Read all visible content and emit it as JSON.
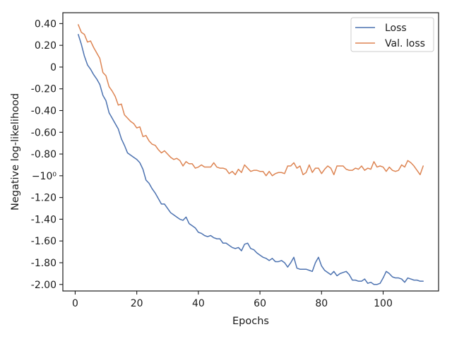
{
  "chart_data": {
    "type": "line",
    "xlabel": "Epochs",
    "ylabel": "Negative log-likelihood",
    "xlim": [
      -4,
      118
    ],
    "ylim": [
      -2.06,
      0.5
    ],
    "x_ticks": [
      0,
      20,
      40,
      60,
      80,
      100
    ],
    "y_ticks": [
      {
        "value": 0.4,
        "label": "0.40"
      },
      {
        "value": 0.2,
        "label": "0.20"
      },
      {
        "value": 0.0,
        "label": "0"
      },
      {
        "value": -0.2,
        "label": "-0.20"
      },
      {
        "value": -0.4,
        "label": "-0.40"
      },
      {
        "value": -0.6,
        "label": "-0.60"
      },
      {
        "value": -0.8,
        "label": "-0.80"
      },
      {
        "value": -1.0,
        "label": "−10⁰"
      },
      {
        "value": -1.2,
        "label": "-1.20"
      },
      {
        "value": -1.4,
        "label": "-1.40"
      },
      {
        "value": -1.6,
        "label": "-1.60"
      },
      {
        "value": -1.8,
        "label": "-1.80"
      },
      {
        "value": -2.0,
        "label": "-2.00"
      }
    ],
    "grid": false,
    "legend_position": "top-right",
    "series": [
      {
        "name": "Loss",
        "color": "#4c72b0",
        "x": [
          1,
          2,
          3,
          4,
          5,
          6,
          7,
          8,
          9,
          10,
          11,
          12,
          13,
          14,
          15,
          16,
          17,
          18,
          19,
          20,
          21,
          22,
          23,
          24,
          25,
          26,
          27,
          28,
          29,
          30,
          31,
          32,
          33,
          34,
          35,
          36,
          37,
          38,
          39,
          40,
          41,
          42,
          43,
          44,
          45,
          46,
          47,
          48,
          49,
          50,
          51,
          52,
          53,
          54,
          55,
          56,
          57,
          58,
          59,
          60,
          61,
          62,
          63,
          64,
          65,
          66,
          67,
          68,
          69,
          70,
          71,
          72,
          73,
          74,
          75,
          76,
          77,
          78,
          79,
          80,
          81,
          82,
          83,
          84,
          85,
          86,
          87,
          88,
          89,
          90,
          91,
          92,
          93,
          94,
          95,
          96,
          97,
          98,
          99,
          100,
          101,
          102,
          103,
          104,
          105,
          106,
          107,
          108,
          109,
          110,
          111,
          112,
          113
        ],
        "values": [
          0.3,
          0.21,
          0.1,
          0.02,
          -0.02,
          -0.07,
          -0.11,
          -0.16,
          -0.26,
          -0.31,
          -0.42,
          -0.47,
          -0.52,
          -0.57,
          -0.66,
          -0.72,
          -0.79,
          -0.81,
          -0.83,
          -0.85,
          -0.88,
          -0.94,
          -1.04,
          -1.07,
          -1.12,
          -1.16,
          -1.21,
          -1.26,
          -1.26,
          -1.3,
          -1.34,
          -1.36,
          -1.38,
          -1.4,
          -1.41,
          -1.38,
          -1.44,
          -1.46,
          -1.48,
          -1.52,
          -1.53,
          -1.55,
          -1.56,
          -1.55,
          -1.57,
          -1.58,
          -1.58,
          -1.62,
          -1.62,
          -1.64,
          -1.66,
          -1.67,
          -1.66,
          -1.69,
          -1.63,
          -1.62,
          -1.67,
          -1.68,
          -1.71,
          -1.73,
          -1.75,
          -1.76,
          -1.78,
          -1.76,
          -1.79,
          -1.79,
          -1.78,
          -1.8,
          -1.84,
          -1.8,
          -1.75,
          -1.85,
          -1.86,
          -1.86,
          -1.86,
          -1.87,
          -1.88,
          -1.8,
          -1.75,
          -1.83,
          -1.87,
          -1.89,
          -1.91,
          -1.88,
          -1.92,
          -1.9,
          -1.89,
          -1.88,
          -1.91,
          -1.96,
          -1.96,
          -1.97,
          -1.97,
          -1.95,
          -1.99,
          -1.98,
          -2.0,
          -2.0,
          -1.99,
          -1.94,
          -1.88,
          -1.9,
          -1.93,
          -1.94,
          -1.94,
          -1.95,
          -1.98,
          -1.94,
          -1.95,
          -1.96,
          -1.96,
          -1.97,
          -1.97
        ]
      },
      {
        "name": "Val. loss",
        "color": "#dd8452",
        "x": [
          1,
          2,
          3,
          4,
          5,
          6,
          7,
          8,
          9,
          10,
          11,
          12,
          13,
          14,
          15,
          16,
          17,
          18,
          19,
          20,
          21,
          22,
          23,
          24,
          25,
          26,
          27,
          28,
          29,
          30,
          31,
          32,
          33,
          34,
          35,
          36,
          37,
          38,
          39,
          40,
          41,
          42,
          43,
          44,
          45,
          46,
          47,
          48,
          49,
          50,
          51,
          52,
          53,
          54,
          55,
          56,
          57,
          58,
          59,
          60,
          61,
          62,
          63,
          64,
          65,
          66,
          67,
          68,
          69,
          70,
          71,
          72,
          73,
          74,
          75,
          76,
          77,
          78,
          79,
          80,
          81,
          82,
          83,
          84,
          85,
          86,
          87,
          88,
          89,
          90,
          91,
          92,
          93,
          94,
          95,
          96,
          97,
          98,
          99,
          100,
          101,
          102,
          103,
          104,
          105,
          106,
          107,
          108,
          109,
          110,
          111,
          112,
          113
        ],
        "values": [
          0.39,
          0.32,
          0.3,
          0.23,
          0.24,
          0.18,
          0.13,
          0.08,
          -0.05,
          -0.08,
          -0.18,
          -0.22,
          -0.27,
          -0.35,
          -0.34,
          -0.44,
          -0.47,
          -0.5,
          -0.52,
          -0.56,
          -0.55,
          -0.64,
          -0.63,
          -0.68,
          -0.71,
          -0.72,
          -0.76,
          -0.79,
          -0.77,
          -0.8,
          -0.83,
          -0.85,
          -0.84,
          -0.86,
          -0.91,
          -0.87,
          -0.89,
          -0.89,
          -0.93,
          -0.92,
          -0.9,
          -0.92,
          -0.92,
          -0.92,
          -0.88,
          -0.92,
          -0.93,
          -0.93,
          -0.94,
          -0.98,
          -0.96,
          -0.99,
          -0.94,
          -0.97,
          -0.9,
          -0.93,
          -0.96,
          -0.95,
          -0.95,
          -0.96,
          -0.96,
          -1.0,
          -0.96,
          -1.0,
          -0.98,
          -0.97,
          -0.97,
          -0.98,
          -0.91,
          -0.91,
          -0.88,
          -0.93,
          -0.91,
          -0.99,
          -0.97,
          -0.9,
          -0.97,
          -0.93,
          -0.93,
          -0.98,
          -0.94,
          -0.91,
          -0.93,
          -0.99,
          -0.91,
          -0.91,
          -0.91,
          -0.94,
          -0.95,
          -0.95,
          -0.93,
          -0.94,
          -0.91,
          -0.95,
          -0.93,
          -0.94,
          -0.87,
          -0.92,
          -0.91,
          -0.92,
          -0.96,
          -0.92,
          -0.95,
          -0.96,
          -0.95,
          -0.9,
          -0.92,
          -0.86,
          -0.88,
          -0.91,
          -0.95,
          -0.99,
          -0.91
        ]
      }
    ]
  }
}
